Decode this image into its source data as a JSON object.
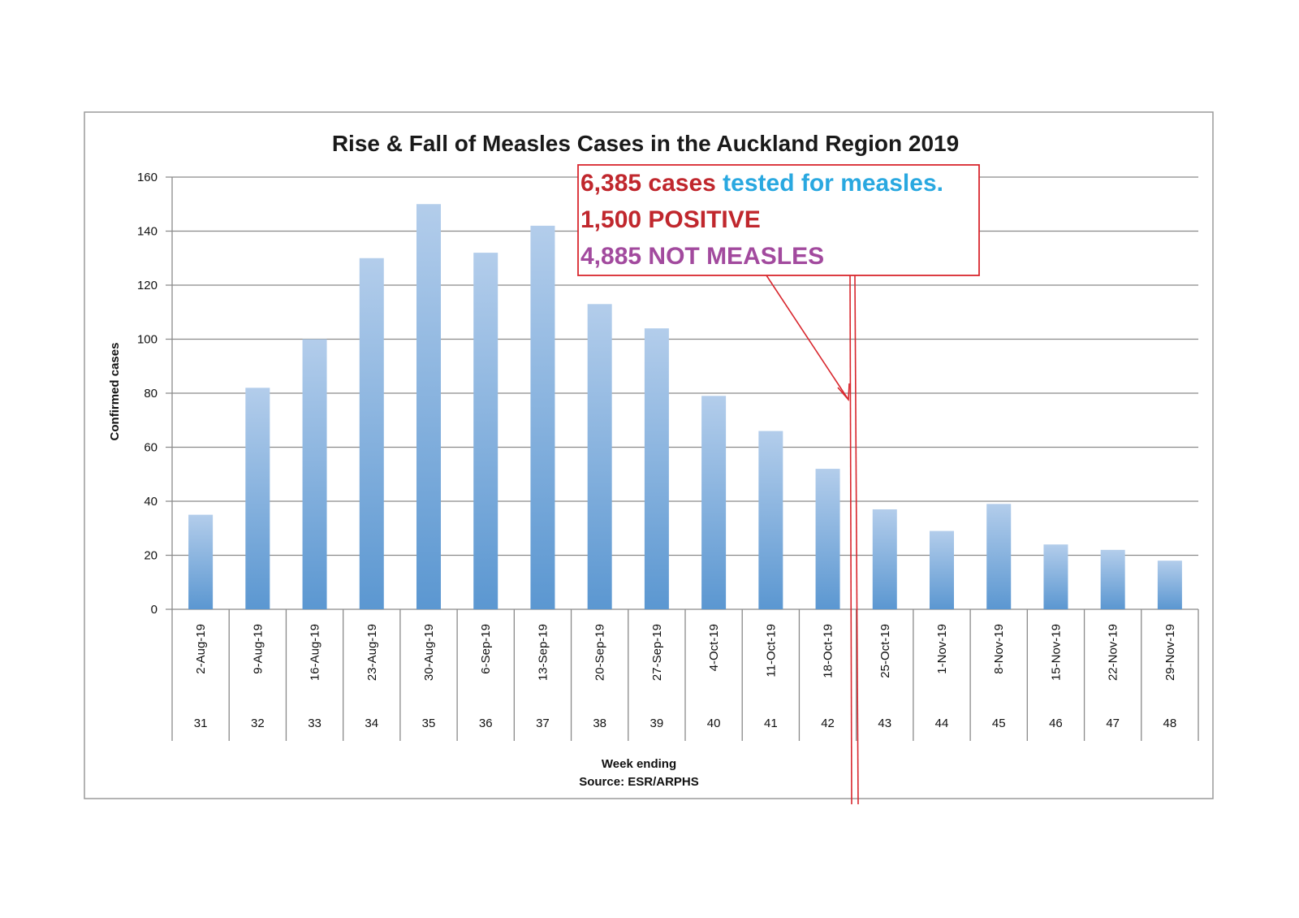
{
  "chart_data": {
    "type": "bar",
    "title": "Rise & Fall of Measles Cases in the Auckland Region 2019",
    "ylabel": "Confirmed cases",
    "xlabel": "Week ending",
    "source": "Source: ESR/ARPHS",
    "ylim": [
      0,
      160
    ],
    "yticks": [
      0,
      20,
      40,
      60,
      80,
      100,
      120,
      140,
      160
    ],
    "grid": true,
    "categories": [
      "2-Aug-19",
      "9-Aug-19",
      "16-Aug-19",
      "23-Aug-19",
      "30-Aug-19",
      "6-Sep-19",
      "13-Sep-19",
      "20-Sep-19",
      "27-Sep-19",
      "4-Oct-19",
      "11-Oct-19",
      "18-Oct-19",
      "25-Oct-19",
      "1-Nov-19",
      "8-Nov-19",
      "15-Nov-19",
      "22-Nov-19",
      "29-Nov-19"
    ],
    "weeks": [
      "31",
      "32",
      "33",
      "34",
      "35",
      "36",
      "37",
      "38",
      "39",
      "40",
      "41",
      "42",
      "43",
      "44",
      "45",
      "46",
      "47",
      "48"
    ],
    "values": [
      35,
      82,
      100,
      130,
      150,
      132,
      142,
      113,
      104,
      79,
      66,
      52,
      37,
      29,
      39,
      24,
      22,
      18
    ],
    "colors": {
      "bar_top": "#b3cdeb",
      "bar_bottom": "#5b97d1",
      "annotation": "#d8262d"
    }
  },
  "annotation": {
    "line1_a": "6,385 cases ",
    "line1_b": "tested for measles.",
    "line2": "1,500 POSITIVE",
    "line3": "4,885 NOT MEASLES",
    "marked_after_category": "18-Oct-19"
  }
}
